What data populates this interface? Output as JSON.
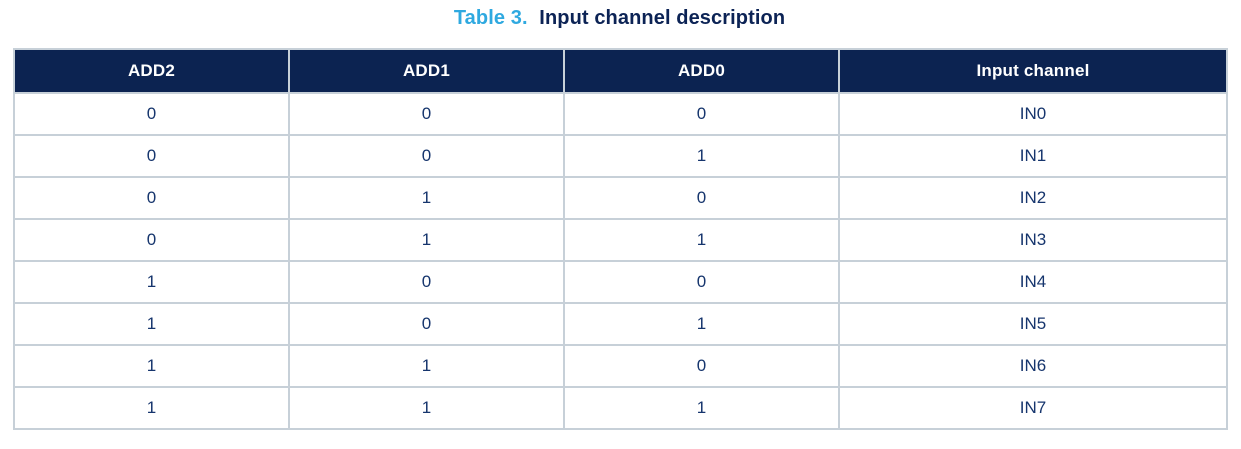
{
  "caption": {
    "number": "Table 3.",
    "title": "Input channel description"
  },
  "table": {
    "columns": [
      "ADD2",
      "ADD1",
      "ADD0",
      "Input channel"
    ],
    "rows": [
      [
        "0",
        "0",
        "0",
        "IN0"
      ],
      [
        "0",
        "0",
        "1",
        "IN1"
      ],
      [
        "0",
        "1",
        "0",
        "IN2"
      ],
      [
        "0",
        "1",
        "1",
        "IN3"
      ],
      [
        "1",
        "0",
        "0",
        "IN4"
      ],
      [
        "1",
        "0",
        "1",
        "IN5"
      ],
      [
        "1",
        "1",
        "0",
        "IN6"
      ],
      [
        "1",
        "1",
        "1",
        "IN7"
      ]
    ]
  },
  "colors": {
    "caption_number_accent": "#2fa9e0",
    "caption_title_text": "#0c2355",
    "header_background": "#0c2351",
    "header_text": "#ffffff",
    "body_text": "#16356d",
    "table_border": "#c7d0d8",
    "page_background": "#ffffff"
  }
}
